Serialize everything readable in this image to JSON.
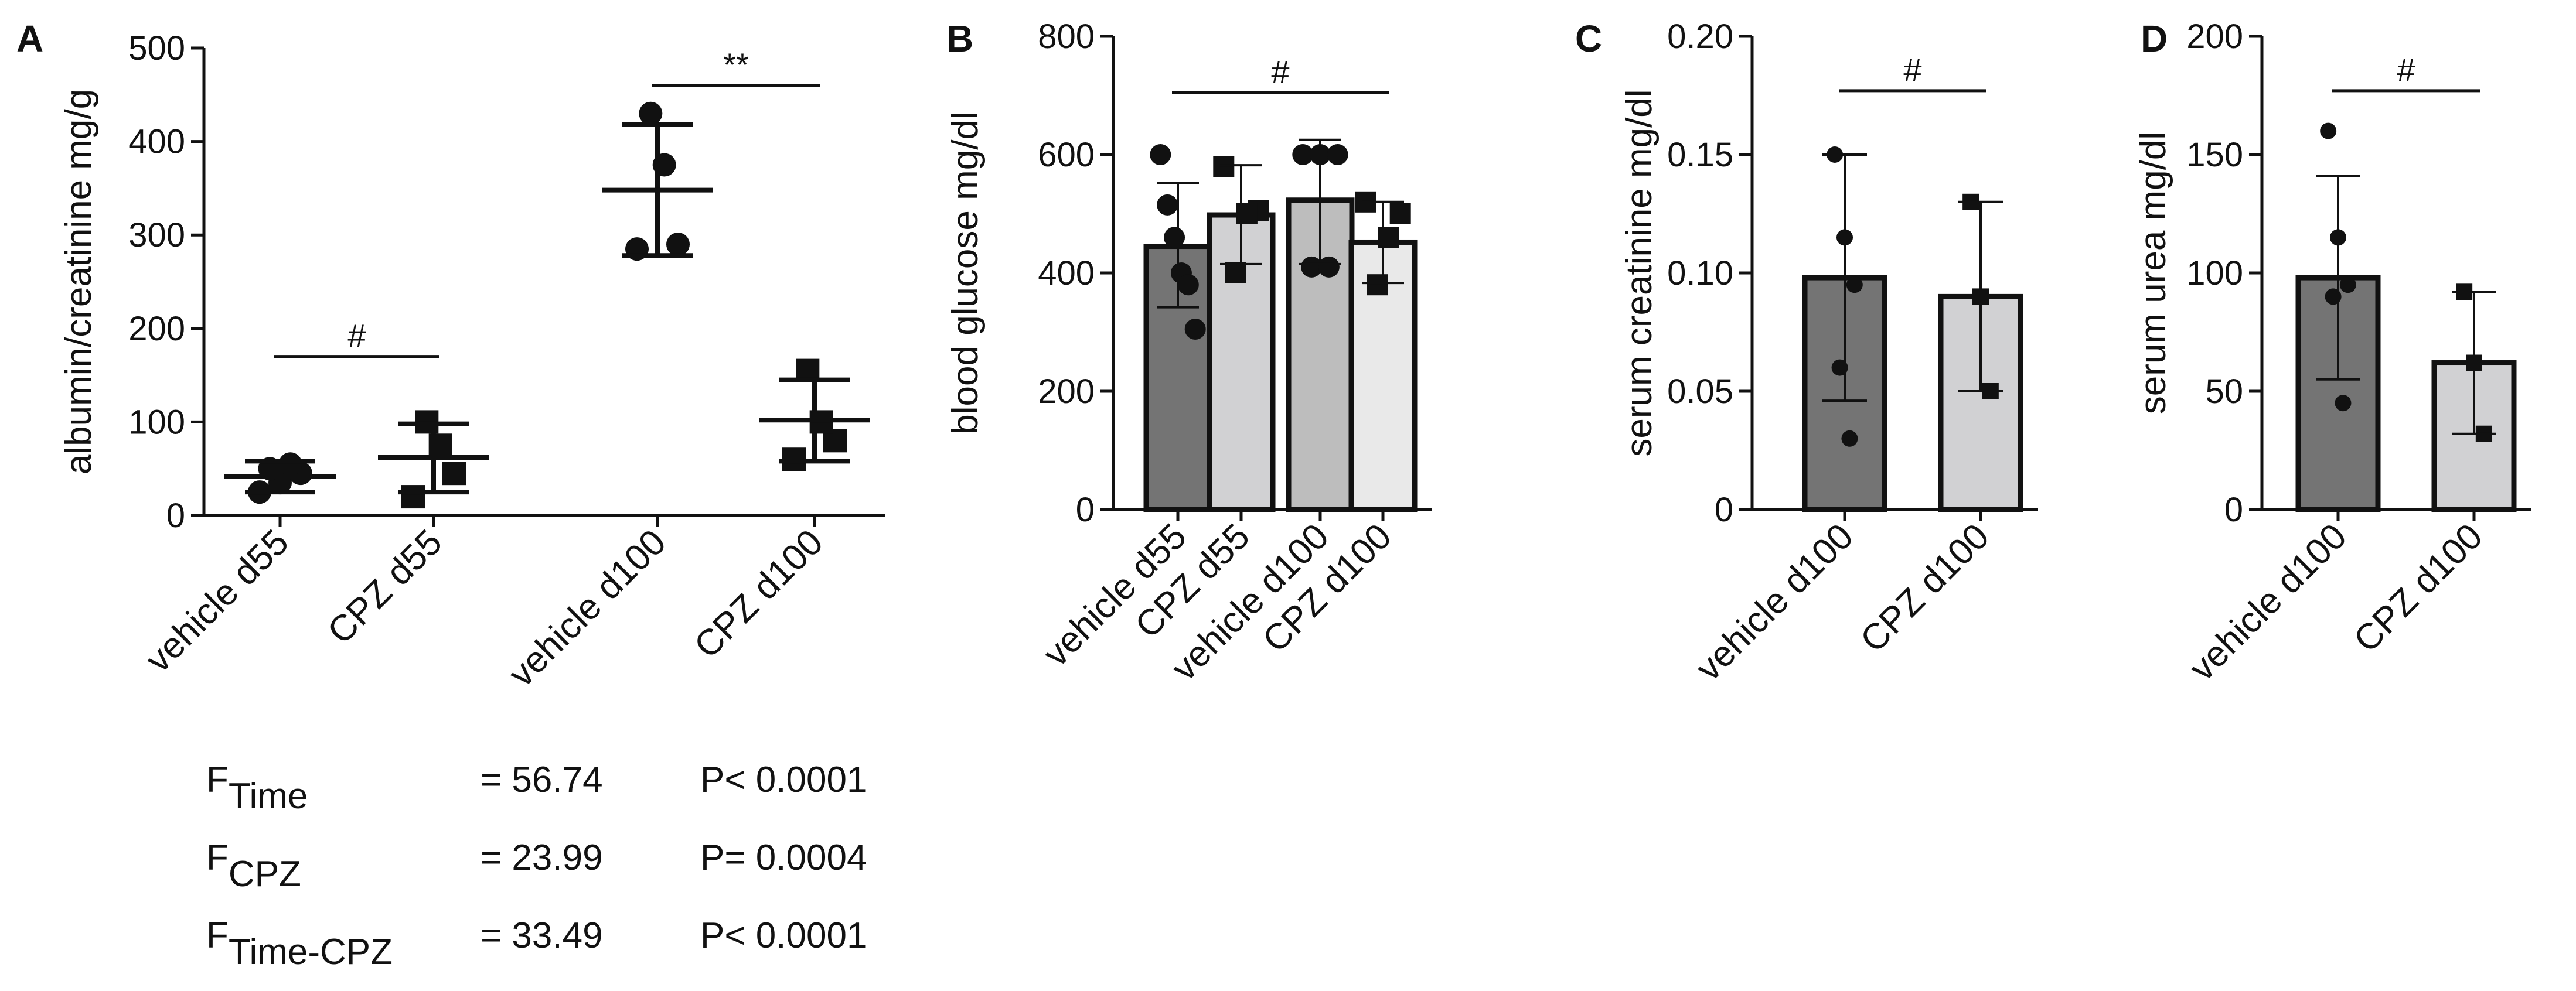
{
  "chart_data": [
    {
      "panel": "A",
      "type": "scatter",
      "ylabel": "albumin/creatinine mg/g",
      "ylim": [
        0,
        500
      ],
      "yticks": [
        0,
        100,
        200,
        300,
        400,
        500
      ],
      "categories": [
        "vehicle d55",
        "CPZ d55",
        "vehicle d100",
        "CPZ d100"
      ],
      "groups": [
        {
          "name": "vehicle d55",
          "marker": "circle",
          "points": [
            25,
            35,
            45,
            50,
            55
          ],
          "mean": 42,
          "sd_low": 25,
          "sd_high": 58
        },
        {
          "name": "CPZ d55",
          "marker": "square",
          "points": [
            20,
            45,
            75,
            100
          ],
          "mean": 62,
          "sd_low": 25,
          "sd_high": 98
        },
        {
          "name": "vehicle d100",
          "marker": "circle",
          "points": [
            285,
            290,
            375,
            430
          ],
          "mean": 348,
          "sd_low": 278,
          "sd_high": 418
        },
        {
          "name": "CPZ d100",
          "marker": "square",
          "points": [
            60,
            80,
            100,
            155
          ],
          "mean": 102,
          "sd_low": 58,
          "sd_high": 145
        }
      ],
      "annotations": [
        {
          "label": "#",
          "from": "vehicle d55",
          "to": "CPZ d55",
          "y": 170
        },
        {
          "label": "**",
          "from": "vehicle d100",
          "to": "CPZ d100",
          "y": 460
        }
      ],
      "stats": [
        {
          "name": "F",
          "sub": "Time",
          "value": "= 56.74",
          "p": "P< 0.0001"
        },
        {
          "name": "F",
          "sub": "CPZ",
          "value": "= 23.99",
          "p": "P= 0.0004"
        },
        {
          "name": "F",
          "sub": "Time-CPZ",
          "value": "= 33.49",
          "p": "P< 0.0001"
        }
      ]
    },
    {
      "panel": "B",
      "type": "bar",
      "ylabel": "blood glucose mg/dl",
      "ylim": [
        0,
        800
      ],
      "yticks": [
        0,
        200,
        400,
        600,
        800
      ],
      "categories": [
        "vehicle d55",
        "CPZ d55",
        "vehicle d100",
        "CPZ d100"
      ],
      "bar_colors": [
        "#747474",
        "#d1d1d3",
        "#bdbdbd",
        "#e9e9e9"
      ],
      "groups": [
        {
          "name": "vehicle d55",
          "marker": "circle",
          "mean": 445,
          "sd_low": 342,
          "sd_high": 552,
          "points": [
            600,
            515,
            460,
            400,
            380,
            305
          ]
        },
        {
          "name": "CPZ d55",
          "marker": "square",
          "mean": 498,
          "sd_low": 415,
          "sd_high": 582,
          "points": [
            580,
            505,
            500,
            400
          ]
        },
        {
          "name": "vehicle d100",
          "marker": "circle",
          "mean": 523,
          "sd_low": 415,
          "sd_high": 625,
          "points": [
            600,
            600,
            600,
            410,
            410
          ]
        },
        {
          "name": "CPZ d100",
          "marker": "square",
          "mean": 452,
          "sd_low": 383,
          "sd_high": 520,
          "points": [
            520,
            500,
            460,
            380
          ]
        }
      ],
      "annotations": [
        {
          "label": "#",
          "from": "vehicle d55",
          "to": "CPZ d100",
          "y": 705
        }
      ]
    },
    {
      "panel": "C",
      "type": "bar",
      "ylabel": "serum creatinine mg/dl",
      "ylim": [
        0,
        0.2
      ],
      "yticks": [
        "0",
        "0.05",
        "0.10",
        "0.15",
        "0.20"
      ],
      "ytick_values": [
        0,
        0.05,
        0.1,
        0.15,
        0.2
      ],
      "categories": [
        "vehicle d100",
        "CPZ d100"
      ],
      "bar_colors": [
        "#747474",
        "#d1d1d3"
      ],
      "groups": [
        {
          "name": "vehicle d100",
          "marker": "circle",
          "mean": 0.098,
          "sd_low": 0.046,
          "sd_high": 0.15,
          "points": [
            0.15,
            0.115,
            0.095,
            0.06,
            0.03
          ]
        },
        {
          "name": "CPZ d100",
          "marker": "square",
          "mean": 0.09,
          "sd_low": 0.05,
          "sd_high": 0.13,
          "points": [
            0.13,
            0.09,
            0.05
          ]
        }
      ],
      "annotations": [
        {
          "label": "#",
          "from": "vehicle d100",
          "to": "CPZ d100",
          "y": 0.177
        }
      ]
    },
    {
      "panel": "D",
      "type": "bar",
      "ylabel": "serum urea mg/dl",
      "ylim": [
        0,
        200
      ],
      "yticks": [
        0,
        50,
        100,
        150,
        200
      ],
      "categories": [
        "vehicle d100",
        "CPZ d100"
      ],
      "bar_colors": [
        "#747474",
        "#d1d1d3"
      ],
      "groups": [
        {
          "name": "vehicle d100",
          "marker": "circle",
          "mean": 98,
          "sd_low": 55,
          "sd_high": 141,
          "points": [
            160,
            115,
            95,
            90,
            45
          ]
        },
        {
          "name": "CPZ d100",
          "marker": "square",
          "mean": 62,
          "sd_low": 32,
          "sd_high": 92,
          "points": [
            92,
            62,
            32
          ]
        }
      ],
      "annotations": [
        {
          "label": "#",
          "from": "vehicle d100",
          "to": "CPZ d100",
          "y": 177
        }
      ]
    }
  ]
}
